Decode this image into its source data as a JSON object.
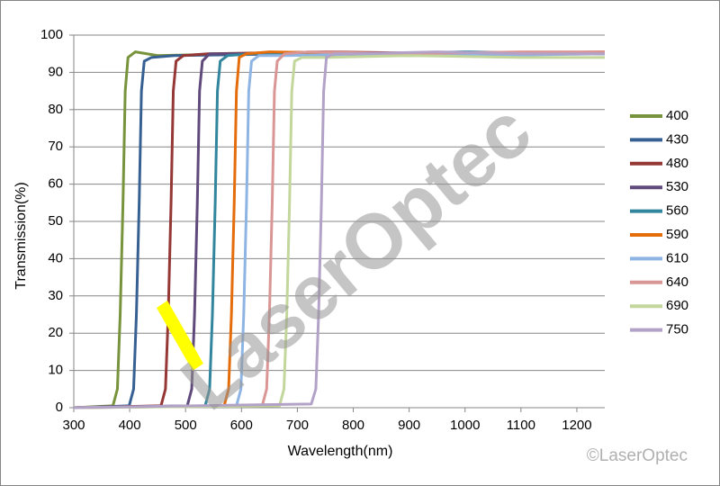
{
  "chart_data": {
    "type": "line",
    "xlabel": "Wavelength(nm)",
    "ylabel": "Transmission(%)",
    "watermark": "LaserOptec",
    "copyright": "©LaserOptec",
    "xlim": [
      300,
      1250
    ],
    "ylim": [
      0,
      100
    ],
    "xticks": [
      300,
      400,
      500,
      600,
      700,
      800,
      900,
      1000,
      1100,
      1200
    ],
    "yticks": [
      0,
      10,
      20,
      30,
      40,
      50,
      60,
      70,
      80,
      90,
      100
    ],
    "grid": true,
    "legend": "right",
    "series": [
      {
        "name": "400",
        "color": "#77933c",
        "x": [
          300,
          370,
          378,
          383,
          388,
          392,
          397,
          410,
          450,
          600,
          900,
          1250
        ],
        "values": [
          0,
          0.5,
          5,
          25,
          55,
          85,
          94,
          95.5,
          94.5,
          95,
          94.5,
          95
        ]
      },
      {
        "name": "430",
        "color": "#376092",
        "x": [
          300,
          399,
          407,
          412,
          417,
          421,
          426,
          439,
          480,
          700,
          1000,
          1250
        ],
        "values": [
          0,
          0.5,
          5,
          25,
          55,
          85,
          93,
          94,
          94.5,
          95,
          95,
          95
        ]
      },
      {
        "name": "480",
        "color": "#953735",
        "x": [
          300,
          456,
          464,
          469,
          474,
          478,
          483,
          496,
          540,
          750,
          1000,
          1250
        ],
        "values": [
          0,
          0.5,
          5,
          25,
          55,
          85,
          93,
          94.5,
          95,
          95.5,
          95,
          95.5
        ]
      },
      {
        "name": "530",
        "color": "#604a7b",
        "x": [
          300,
          503,
          511,
          516,
          521,
          525,
          530,
          543,
          590,
          800,
          1000,
          1250
        ],
        "values": [
          0,
          0.5,
          5,
          25,
          55,
          85,
          93,
          95,
          95,
          94.5,
          95,
          95
        ]
      },
      {
        "name": "560",
        "color": "#31859c",
        "x": [
          300,
          535,
          543,
          548,
          553,
          557,
          562,
          575,
          620,
          800,
          1000,
          1250
        ],
        "values": [
          0,
          0.5,
          5,
          25,
          55,
          85,
          93,
          94.5,
          95,
          95,
          95.5,
          95
        ]
      },
      {
        "name": "590",
        "color": "#e46c0a",
        "x": [
          300,
          569,
          577,
          582,
          587,
          591,
          596,
          609,
          650,
          850,
          1050,
          1250
        ],
        "values": [
          0,
          0.5,
          5,
          25,
          55,
          85,
          94,
          95,
          95.5,
          95,
          95,
          95.5
        ]
      },
      {
        "name": "610",
        "color": "#8eb4e3",
        "x": [
          300,
          591,
          599,
          604,
          609,
          613,
          618,
          631,
          680,
          850,
          1050,
          1250
        ],
        "values": [
          0,
          0.5,
          5,
          25,
          55,
          85,
          93,
          94.5,
          94.5,
          95,
          94.5,
          95
        ]
      },
      {
        "name": "640",
        "color": "#d99694",
        "x": [
          300,
          637,
          645,
          650,
          655,
          659,
          664,
          677,
          720,
          900,
          1100,
          1250
        ],
        "values": [
          0,
          0.5,
          5,
          25,
          55,
          85,
          93,
          95,
          95.5,
          95,
          95.5,
          95.5
        ]
      },
      {
        "name": "690",
        "color": "#c3d69b",
        "x": [
          300,
          668,
          676,
          681,
          686,
          690,
          695,
          708,
          750,
          900,
          1100,
          1250
        ],
        "values": [
          0,
          0.5,
          5,
          25,
          55,
          85,
          93,
          94,
          94,
          94.5,
          94,
          94
        ]
      },
      {
        "name": "750",
        "color": "#b3a2c7",
        "x": [
          300,
          725,
          733,
          738,
          743,
          747,
          752,
          765,
          800,
          950,
          1100,
          1250
        ],
        "values": [
          0,
          1,
          5,
          25,
          55,
          85,
          94,
          95,
          95,
          95.5,
          95,
          95
        ]
      }
    ]
  }
}
